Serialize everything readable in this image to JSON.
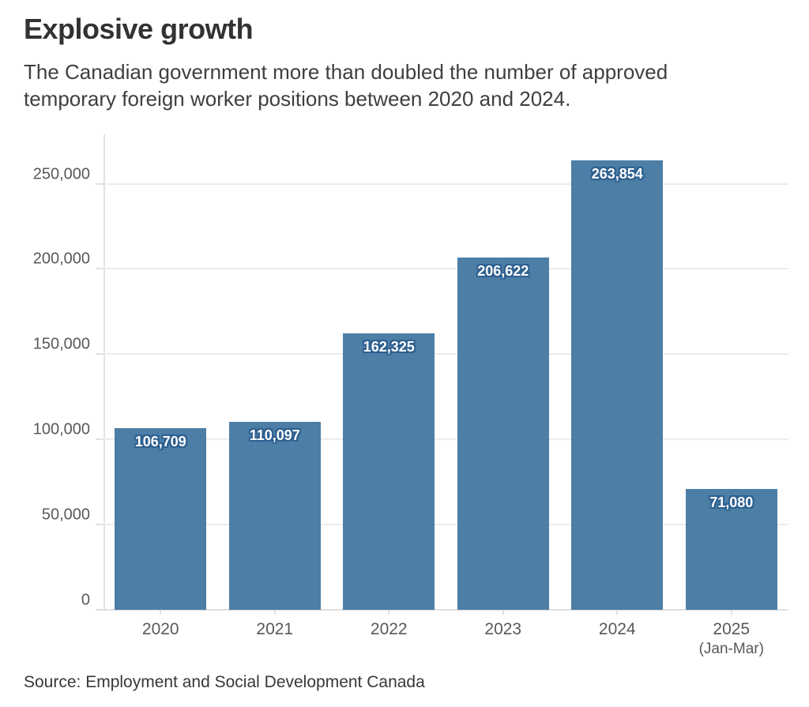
{
  "header": {
    "title": "Explosive growth",
    "subtitle": "The Canadian government more than doubled the number of approved temporary foreign worker positions between 2020 and 2024."
  },
  "footer": {
    "source": "Source: Employment and Social Development Canada"
  },
  "colors": {
    "bar": "#4d7ea6",
    "bar_label_text": "#ffffff",
    "bar_label_halo": "#2f6191",
    "gridline": "#ececec",
    "axis": "#e0e0e0",
    "axis_text": "#585858"
  },
  "chart_data": {
    "type": "bar",
    "title": "Explosive growth",
    "subtitle": "The Canadian government more than doubled the number of approved temporary foreign worker positions between 2020 and 2024.",
    "categories": [
      "2020",
      "2021",
      "2022",
      "2023",
      "2024",
      "2025"
    ],
    "category_sublabels": [
      "",
      "",
      "",
      "",
      "",
      "(Jan-Mar)"
    ],
    "values": [
      106709,
      110097,
      162325,
      206622,
      263854,
      71080
    ],
    "value_labels": [
      "106,709",
      "110,097",
      "162,325",
      "206,622",
      "263,854",
      "71,080"
    ],
    "xlabel": "",
    "ylabel": "",
    "ylim": [
      0,
      279000
    ],
    "yticks": [
      0,
      50000,
      100000,
      150000,
      200000,
      250000
    ],
    "ytick_labels": [
      "0",
      "50,000",
      "100,000",
      "150,000",
      "200,000",
      "250,000"
    ],
    "grid": true,
    "legend": false,
    "source": "Source: Employment and Social Development Canada"
  }
}
